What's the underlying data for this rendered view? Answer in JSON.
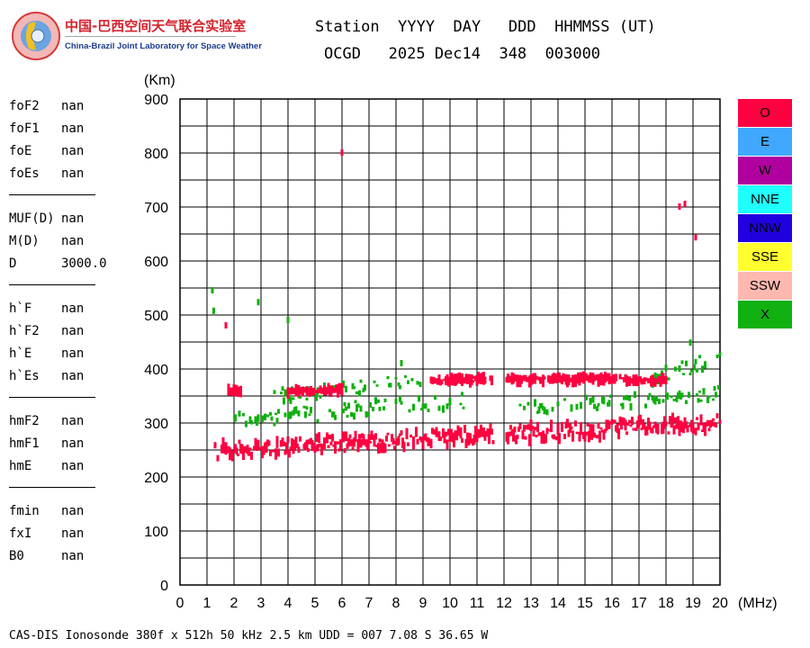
{
  "logo": {
    "cn_name": "中国-巴西空间天气联合实验室",
    "en_name": "China-Brazil Joint Laboratory for Space Weather"
  },
  "header": {
    "line1": "Station  YYYY  DAY   DDD  HHMMSS (UT)",
    "line2": "OCGD   2025 Dec14  348  003000"
  },
  "params": [
    [
      {
        "name": "foF2",
        "value": "nan"
      },
      {
        "name": "foF1",
        "value": "nan"
      },
      {
        "name": "foE",
        "value": "nan"
      },
      {
        "name": "foEs",
        "value": "nan"
      }
    ],
    [
      {
        "name": "MUF(D)",
        "value": "nan"
      },
      {
        "name": "M(D)",
        "value": "nan"
      },
      {
        "name": "D",
        "value": "3000.0"
      }
    ],
    [
      {
        "name": "h`F",
        "value": "nan"
      },
      {
        "name": "h`F2",
        "value": "nan"
      },
      {
        "name": "h`E",
        "value": "nan"
      },
      {
        "name": "h`Es",
        "value": "nan"
      }
    ],
    [
      {
        "name": "hmF2",
        "value": "nan"
      },
      {
        "name": "hmF1",
        "value": "nan"
      },
      {
        "name": "hmE",
        "value": "nan"
      }
    ],
    [
      {
        "name": "fmin",
        "value": "nan"
      },
      {
        "name": "fxI",
        "value": "nan"
      },
      {
        "name": "B0",
        "value": "nan"
      }
    ]
  ],
  "footer": "CAS-DIS Ionosonde 380f x 512h 50 kHz 2.5 km UDD = 007 7.08 S 36.65 W",
  "chart_data": {
    "type": "scatter",
    "title": "",
    "xlabel": "(MHz)",
    "ylabel": "(Km)",
    "xlim": [
      0,
      20
    ],
    "ylim": [
      0,
      900
    ],
    "x_ticks": [
      0,
      1,
      2,
      3,
      4,
      5,
      6,
      7,
      8,
      9,
      10,
      11,
      12,
      13,
      14,
      15,
      16,
      17,
      18,
      19,
      20
    ],
    "y_ticks": [
      0,
      100,
      200,
      300,
      400,
      500,
      600,
      700,
      800,
      900
    ],
    "grid": true,
    "legend_placement": "right",
    "legend": [
      {
        "label": "O",
        "color": "#ff0040"
      },
      {
        "label": "E",
        "color": "#40a8ff"
      },
      {
        "label": "W",
        "color": "#b0009f"
      },
      {
        "label": "NNE",
        "color": "#20ffff"
      },
      {
        "label": "NNW",
        "color": "#2000e0"
      },
      {
        "label": "SSE",
        "color": "#ffff30"
      },
      {
        "label": "SSW",
        "color": "#ffb8b0"
      },
      {
        "label": "X",
        "color": "#10b010"
      }
    ],
    "series": [
      {
        "name": "O",
        "color": "#ff0040",
        "traces": [
          {
            "f0": 1.5,
            "f1": 11.6,
            "h0": 250,
            "h1": 278,
            "spread": 28
          },
          {
            "f0": 12.1,
            "f1": 20.0,
            "h0": 280,
            "h1": 300,
            "spread": 28
          },
          {
            "f0": 1.8,
            "f1": 2.3,
            "h0": 358,
            "h1": 362,
            "spread": 8
          },
          {
            "f0": 4.0,
            "f1": 6.0,
            "h0": 358,
            "h1": 362,
            "spread": 6
          },
          {
            "f0": 9.3,
            "f1": 11.6,
            "h0": 378,
            "h1": 382,
            "spread": 8
          },
          {
            "f0": 12.1,
            "f1": 16.5,
            "h0": 380,
            "h1": 382,
            "spread": 8
          },
          {
            "f0": 16.5,
            "f1": 18.0,
            "h0": 375,
            "h1": 380,
            "spread": 8
          }
        ],
        "points": [
          [
            1.7,
            480
          ],
          [
            6.0,
            800
          ],
          [
            18.5,
            700
          ],
          [
            18.7,
            705
          ],
          [
            19.1,
            643
          ],
          [
            1.3,
            258
          ],
          [
            1.4,
            234
          ]
        ]
      },
      {
        "name": "X",
        "color": "#10b010",
        "traces": [
          {
            "f0": 2.0,
            "f1": 11.0,
            "h0": 305,
            "h1": 345,
            "spread": 30
          },
          {
            "f0": 3.5,
            "f1": 9.0,
            "h0": 350,
            "h1": 380,
            "spread": 25
          },
          {
            "f0": 12.5,
            "f1": 20.0,
            "h0": 325,
            "h1": 355,
            "spread": 25
          },
          {
            "f0": 17.5,
            "f1": 20.0,
            "h0": 380,
            "h1": 425,
            "spread": 30
          }
        ],
        "points": [
          [
            1.2,
            545
          ],
          [
            1.25,
            507
          ],
          [
            2.9,
            523
          ],
          [
            4.0,
            490
          ],
          [
            8.2,
            410
          ],
          [
            18.9,
            448
          ]
        ]
      }
    ]
  }
}
